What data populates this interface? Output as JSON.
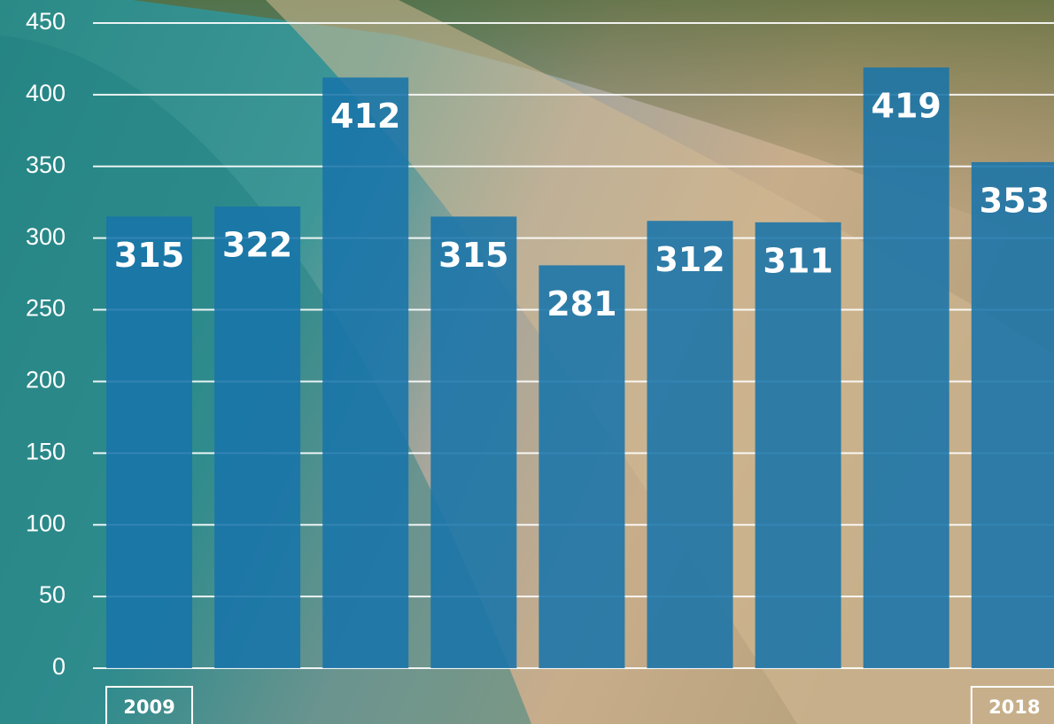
{
  "chart_data": {
    "type": "bar",
    "categories": [
      "2009",
      null,
      null,
      null,
      null,
      null,
      null,
      null,
      "2018"
    ],
    "values": [
      315,
      322,
      412,
      315,
      281,
      312,
      311,
      419,
      353
    ],
    "color": "#1874aa",
    "ylim": [
      0,
      450
    ],
    "yticks": [
      0,
      50,
      100,
      150,
      200,
      250,
      300,
      350,
      400,
      450
    ],
    "grid": true
  }
}
